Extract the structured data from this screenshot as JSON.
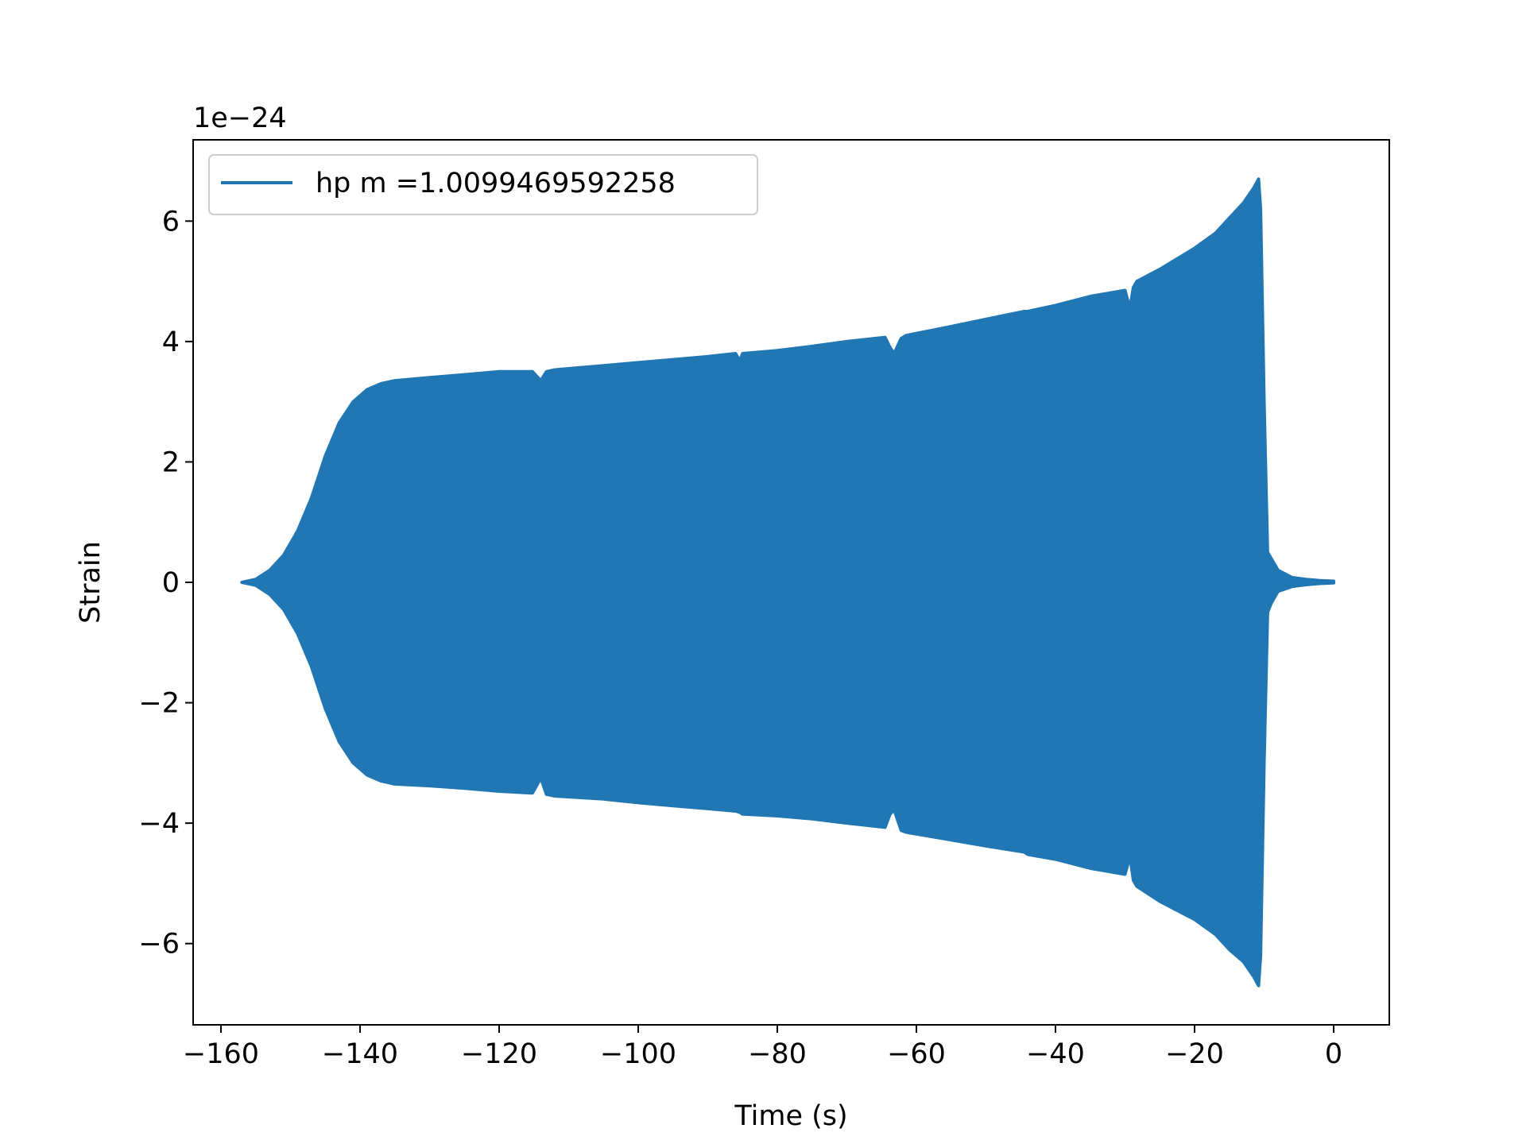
{
  "chart_data": {
    "type": "area",
    "title": "",
    "xlabel": "Time (s)",
    "ylabel": "Strain",
    "offset_label": "1e−24",
    "xlim": [
      -164,
      8
    ],
    "ylim": [
      -7.35,
      7.35
    ],
    "xticks": [
      -160,
      -140,
      -120,
      -100,
      -80,
      -60,
      -40,
      -20,
      0
    ],
    "xtick_labels": [
      "−160",
      "−140",
      "−120",
      "−100",
      "−80",
      "−60",
      "−40",
      "−20",
      "0"
    ],
    "yticks": [
      -6,
      -4,
      -2,
      0,
      2,
      4,
      6
    ],
    "ytick_labels": [
      "−6",
      "−4",
      "−2",
      "0",
      "2",
      "4",
      "6"
    ],
    "grid": false,
    "legend_position": "upper-left",
    "color": "#2077b4",
    "series": [
      {
        "name": "hp m =1.0099469592258",
        "description": "oscillating strain waveform; values give the envelope (amplitude, units of 1e-24)",
        "x": [
          -157,
          -155,
          -153,
          -151,
          -149,
          -147,
          -145,
          -143,
          -141,
          -139,
          -137,
          -135,
          -130,
          -125,
          -120,
          -115.2,
          -114,
          -113.2,
          -112,
          -105,
          -100,
          -95,
          -90,
          -86,
          -85.4,
          -85,
          -80,
          -75,
          -70,
          -64.5,
          -63.8,
          -63.2,
          -62.2,
          -61.5,
          -55,
          -50,
          -44.5,
          -44,
          -40,
          -35,
          -30,
          -29.3,
          -28.8,
          -28.3,
          -25,
          -20,
          -17,
          -15,
          -13,
          -11.5,
          -10.8,
          -10.5,
          -10,
          -9.5,
          -9,
          -8,
          -6,
          -4,
          -2,
          0
        ],
        "upper": [
          0.0,
          0.05,
          0.2,
          0.45,
          0.85,
          1.4,
          2.1,
          2.65,
          3.0,
          3.2,
          3.3,
          3.35,
          3.4,
          3.45,
          3.5,
          3.5,
          3.35,
          3.5,
          3.53,
          3.6,
          3.65,
          3.7,
          3.75,
          3.8,
          3.68,
          3.8,
          3.85,
          3.92,
          4.0,
          4.07,
          3.9,
          3.8,
          4.05,
          4.1,
          4.25,
          4.37,
          4.5,
          4.5,
          4.6,
          4.75,
          4.85,
          4.55,
          4.9,
          5.0,
          5.2,
          5.55,
          5.8,
          6.05,
          6.3,
          6.55,
          6.7,
          6.2,
          3.0,
          0.5,
          0.4,
          0.2,
          0.08,
          0.05,
          0.03,
          0.02
        ],
        "lower": [
          0.0,
          -0.05,
          -0.2,
          -0.45,
          -0.85,
          -1.4,
          -2.1,
          -2.65,
          -3.0,
          -3.2,
          -3.3,
          -3.35,
          -3.38,
          -3.42,
          -3.47,
          -3.5,
          -3.25,
          -3.52,
          -3.55,
          -3.6,
          -3.66,
          -3.71,
          -3.76,
          -3.8,
          -3.82,
          -3.85,
          -3.88,
          -3.93,
          -4.0,
          -4.07,
          -3.85,
          -3.78,
          -4.12,
          -4.15,
          -4.28,
          -4.38,
          -4.48,
          -4.52,
          -4.6,
          -4.75,
          -4.85,
          -4.55,
          -4.95,
          -5.05,
          -5.3,
          -5.6,
          -5.85,
          -6.1,
          -6.3,
          -6.55,
          -6.7,
          -6.2,
          -3.0,
          -0.5,
          -0.35,
          -0.15,
          -0.07,
          -0.04,
          -0.02,
          -0.01
        ]
      }
    ]
  }
}
